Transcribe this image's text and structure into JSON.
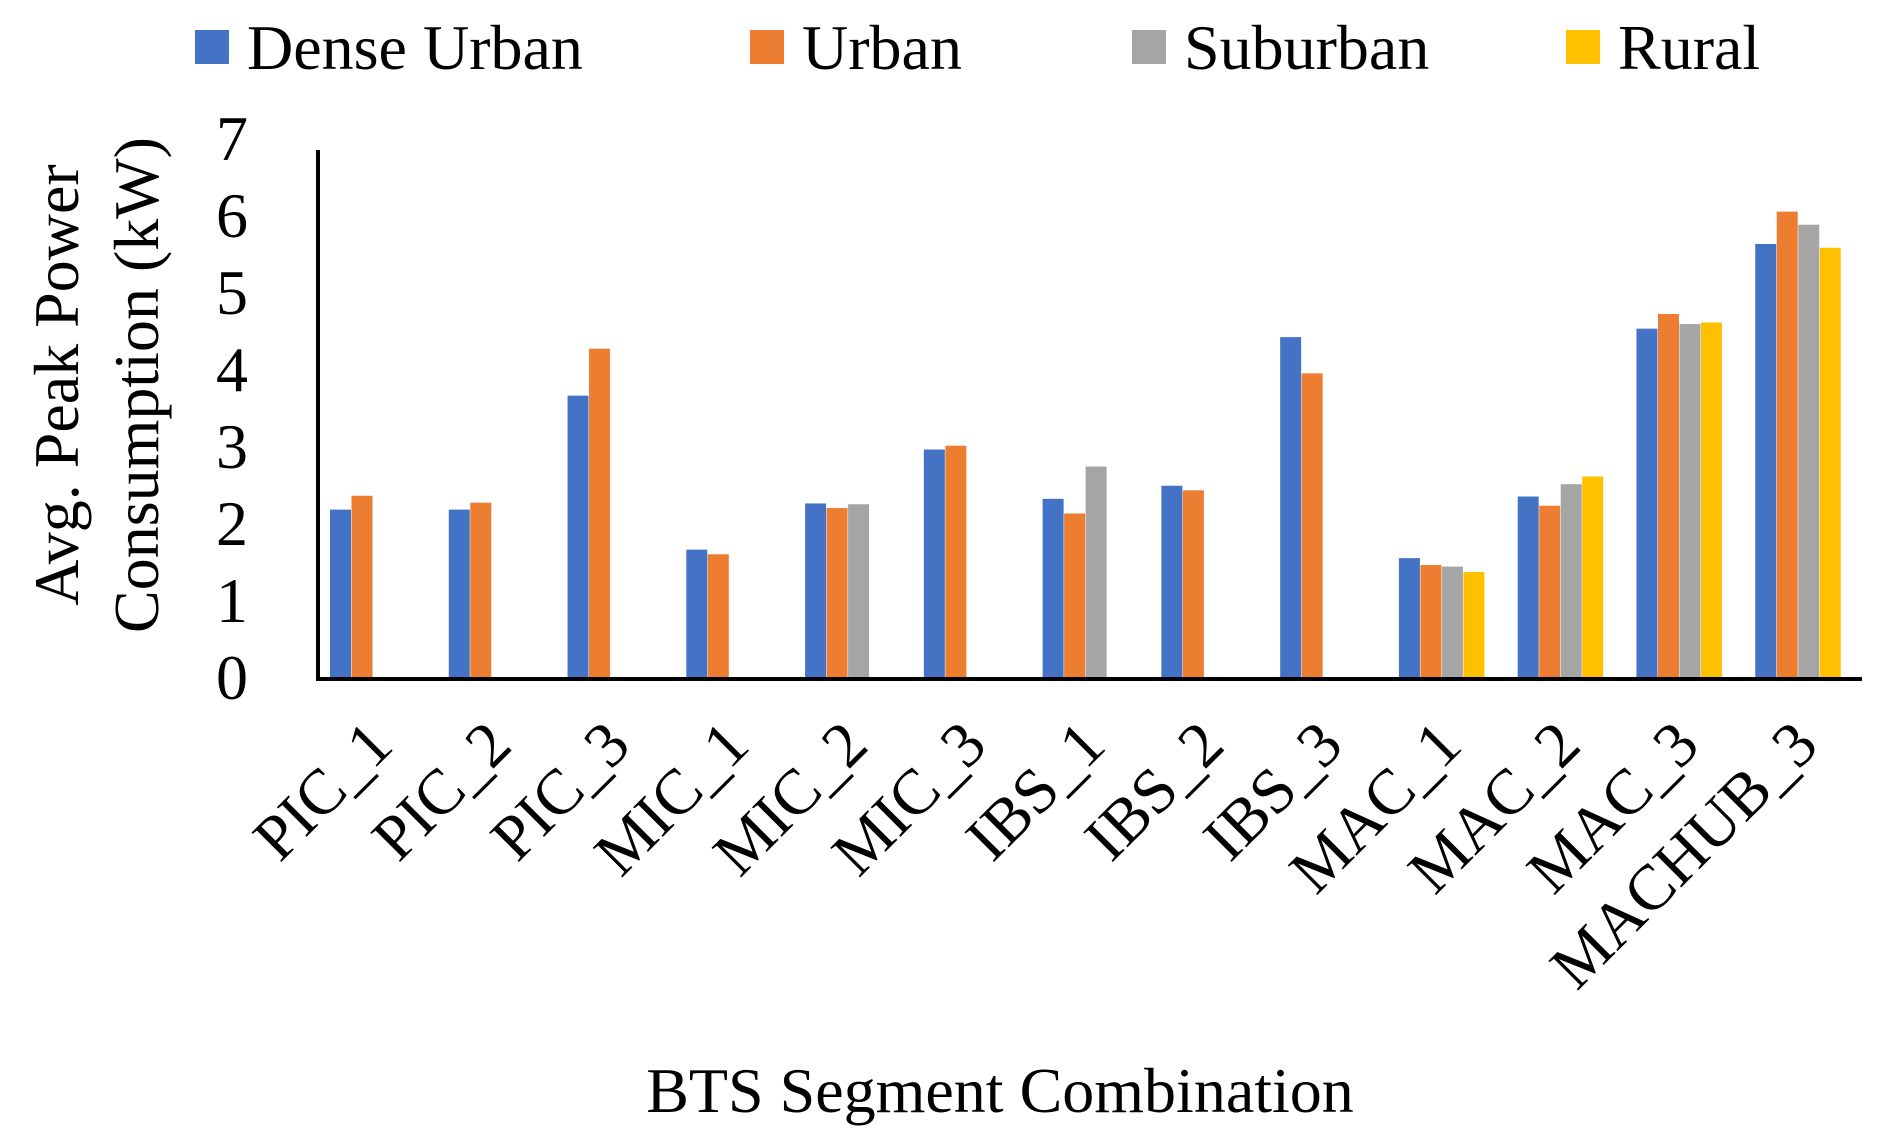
{
  "chart_data": {
    "type": "bar",
    "xlabel": "BTS Segment Combination",
    "ylabel_lines": [
      "Avg. Peak Power",
      "Consumption (kW)"
    ],
    "ylim": [
      0,
      7
    ],
    "yticks": [
      "0",
      "1",
      "2",
      "3",
      "4",
      "5",
      "6",
      "7"
    ],
    "grid": false,
    "legend_position": "top",
    "categories": [
      "PIC_1",
      "PIC_2",
      "PIC_3",
      "MIC_1",
      "MIC_2",
      "MIC_3",
      "IBS_1",
      "IBS_2",
      "IBS_3",
      "MAC_1",
      "MAC_2",
      "MAC_3",
      "MACHUB_3"
    ],
    "series": [
      {
        "name": "Dense Urban",
        "color": "#4472C4",
        "values": [
          2.2,
          2.2,
          3.68,
          1.68,
          2.28,
          2.98,
          2.34,
          2.51,
          4.44,
          1.57,
          2.37,
          4.55,
          5.65
        ]
      },
      {
        "name": "Urban",
        "color": "#ED7D31",
        "values": [
          2.38,
          2.29,
          4.29,
          1.62,
          2.22,
          3.03,
          2.15,
          2.45,
          3.97,
          1.48,
          2.25,
          4.74,
          6.07
        ]
      },
      {
        "name": "Suburban",
        "color": "#A5A5A5",
        "values": [
          null,
          null,
          null,
          null,
          2.27,
          null,
          2.76,
          null,
          null,
          1.46,
          2.53,
          4.61,
          5.9
        ]
      },
      {
        "name": "Rural",
        "color": "#FFC000",
        "values": [
          null,
          null,
          null,
          null,
          null,
          null,
          null,
          null,
          null,
          1.39,
          2.63,
          4.63,
          5.6
        ]
      }
    ]
  }
}
